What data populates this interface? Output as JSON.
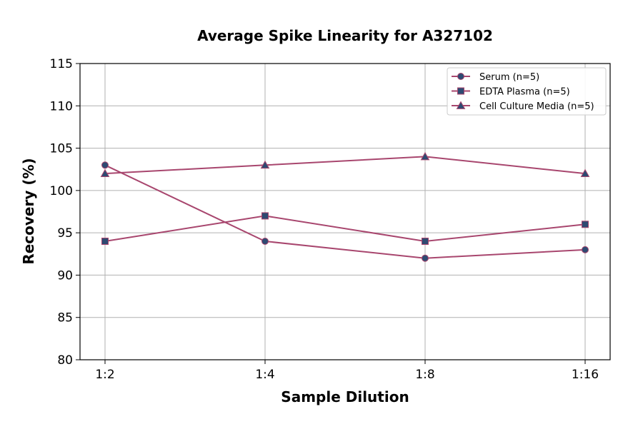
{
  "chart_data": {
    "type": "line",
    "title": "Average Spike Linearity for A327102",
    "xlabel": "Sample Dilution",
    "ylabel": "Recovery (%)",
    "categories": [
      "1:2",
      "1:4",
      "1:8",
      "1:16"
    ],
    "ylim": [
      80,
      115
    ],
    "yticks": [
      80,
      85,
      90,
      95,
      100,
      105,
      110,
      115
    ],
    "grid": true,
    "legend_position": "top-right",
    "line_color": "#a8466e",
    "marker_color": "#2e4a72",
    "series": [
      {
        "name": "Serum (n=5)",
        "marker": "circle",
        "values": [
          103,
          94,
          92,
          93
        ]
      },
      {
        "name": "EDTA Plasma (n=5)",
        "marker": "square",
        "values": [
          94,
          97,
          94,
          96
        ]
      },
      {
        "name": "Cell Culture Media (n=5)",
        "marker": "triangle",
        "values": [
          102,
          103,
          104,
          102
        ]
      }
    ]
  }
}
